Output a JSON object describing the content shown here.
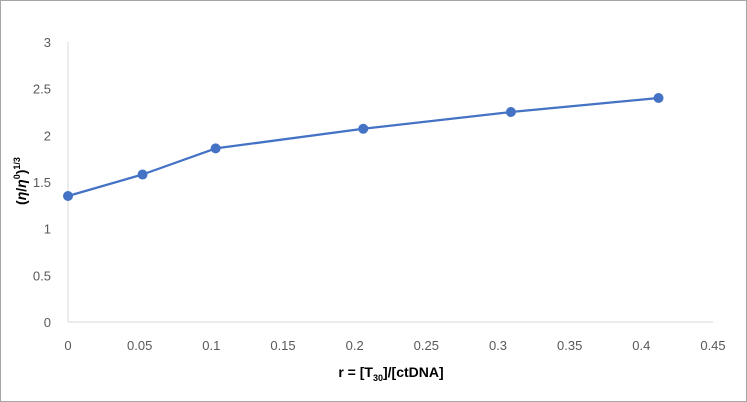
{
  "chart_data": {
    "type": "line",
    "x": [
      0,
      0.052,
      0.103,
      0.206,
      0.309,
      0.412
    ],
    "series": [
      {
        "values": [
          1.35,
          1.58,
          1.86,
          2.07,
          2.25,
          2.4
        ]
      }
    ],
    "x_ticks": [
      "0",
      "0.05",
      "0.1",
      "0.15",
      "0.2",
      "0.25",
      "0.3",
      "0.35",
      "0.4",
      "0.45"
    ],
    "y_ticks": [
      "0",
      "0.5",
      "1",
      "1.5",
      "2",
      "2.5",
      "3"
    ],
    "xlim": [
      0,
      0.45
    ],
    "ylim": [
      0,
      3
    ],
    "xlabel": {
      "main": "r = [T",
      "sub": "30",
      "rest": "]/[ctDNA]"
    },
    "ylabel": {
      "open": "(",
      "eta": "η",
      "slash": "/",
      "eta0": "η",
      "sup0": "0",
      "close": ")",
      "exp": "1/3"
    },
    "grid": false,
    "legend": "none",
    "colors": {
      "series": "#4472c4",
      "axis": "#d9d9d9",
      "frame": "#a6a6a6"
    },
    "markers": "circle"
  }
}
